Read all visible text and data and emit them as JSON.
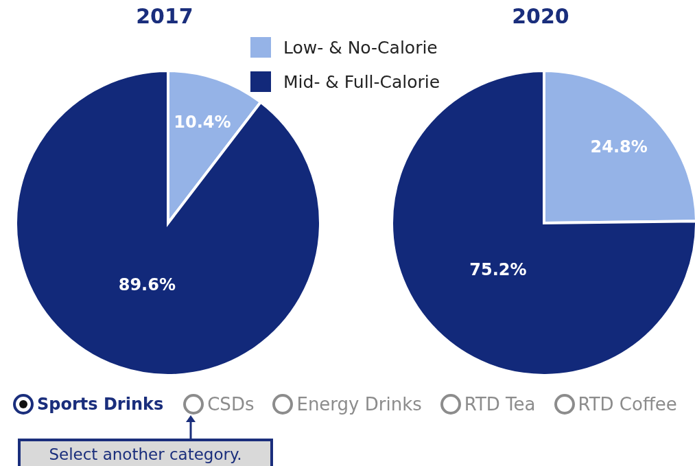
{
  "chart_data": [
    {
      "type": "pie",
      "title": "2017",
      "categories": [
        "Low- & No-Calorie",
        "Mid- & Full-Calorie"
      ],
      "values": [
        10.4,
        89.6
      ],
      "colors": [
        "#95b3e7",
        "#12297a"
      ],
      "value_labels": [
        "10.4%",
        "89.6%"
      ],
      "legend": "top right"
    },
    {
      "type": "pie",
      "title": "2020",
      "categories": [
        null,
        null
      ],
      "values": [
        24.8,
        75.2
      ],
      "colors": [
        "#95b3e7",
        "#12297a"
      ],
      "value_labels": [
        "24.8%",
        "75.2%"
      ]
    },
    {
      "type": "other",
      "annotations": [
        "Sports Drinks",
        "CSDs",
        "Energy Drinks",
        "RTD Tea",
        "RTD Coffee",
        "Select another category."
      ]
    }
  ]
}
